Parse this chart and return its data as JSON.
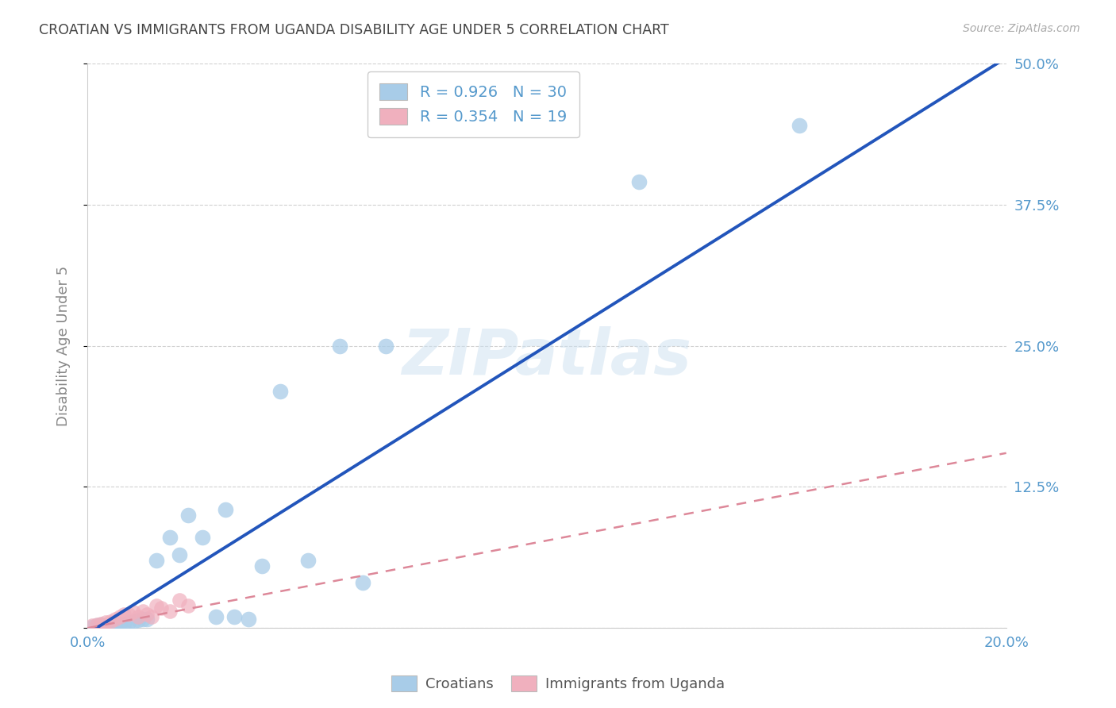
{
  "title": "CROATIAN VS IMMIGRANTS FROM UGANDA DISABILITY AGE UNDER 5 CORRELATION CHART",
  "source": "Source: ZipAtlas.com",
  "ylabel": "Disability Age Under 5",
  "watermark": "ZIPatlas",
  "croatian_R": 0.926,
  "croatian_N": 30,
  "uganda_R": 0.354,
  "uganda_N": 19,
  "xlim": [
    0.0,
    0.2
  ],
  "ylim": [
    0.0,
    0.5
  ],
  "xticks": [
    0.0,
    0.05,
    0.1,
    0.15,
    0.2
  ],
  "yticks": [
    0.0,
    0.125,
    0.25,
    0.375,
    0.5
  ],
  "ytick_labels_right": [
    "",
    "12.5%",
    "25.0%",
    "37.5%",
    "50.0%"
  ],
  "xtick_labels": [
    "0.0%",
    "",
    "",
    "",
    "20.0%"
  ],
  "croatian_color": "#a8cce8",
  "uganda_color": "#f0b0be",
  "line_blue": "#2255bb",
  "line_pink": "#dd8899",
  "background_color": "#ffffff",
  "grid_color": "#d0d0d0",
  "title_color": "#444444",
  "axis_label_color": "#888888",
  "tick_color": "#5599cc",
  "croatian_points_x": [
    0.001,
    0.002,
    0.003,
    0.004,
    0.005,
    0.006,
    0.007,
    0.008,
    0.009,
    0.01,
    0.011,
    0.012,
    0.013,
    0.015,
    0.018,
    0.02,
    0.022,
    0.025,
    0.028,
    0.03,
    0.032,
    0.035,
    0.038,
    0.042,
    0.048,
    0.055,
    0.06,
    0.065,
    0.12,
    0.155
  ],
  "croatian_points_y": [
    0.001,
    0.002,
    0.003,
    0.001,
    0.002,
    0.003,
    0.004,
    0.004,
    0.005,
    0.006,
    0.007,
    0.008,
    0.008,
    0.06,
    0.08,
    0.065,
    0.1,
    0.08,
    0.01,
    0.105,
    0.01,
    0.008,
    0.055,
    0.21,
    0.06,
    0.25,
    0.04,
    0.25,
    0.395,
    0.445
  ],
  "uganda_points_x": [
    0.001,
    0.002,
    0.003,
    0.004,
    0.005,
    0.006,
    0.007,
    0.008,
    0.009,
    0.01,
    0.011,
    0.012,
    0.013,
    0.014,
    0.015,
    0.016,
    0.018,
    0.02,
    0.022
  ],
  "uganda_points_y": [
    0.002,
    0.003,
    0.004,
    0.005,
    0.006,
    0.008,
    0.01,
    0.012,
    0.012,
    0.014,
    0.01,
    0.015,
    0.012,
    0.01,
    0.02,
    0.018,
    0.015,
    0.025,
    0.02
  ],
  "blue_line_x0": 0.0,
  "blue_line_y0": -0.005,
  "blue_line_x1": 0.2,
  "blue_line_y1": 0.505,
  "pink_line_x0": 0.0,
  "pink_line_y0": 0.0,
  "pink_line_x1": 0.2,
  "pink_line_y1": 0.155
}
